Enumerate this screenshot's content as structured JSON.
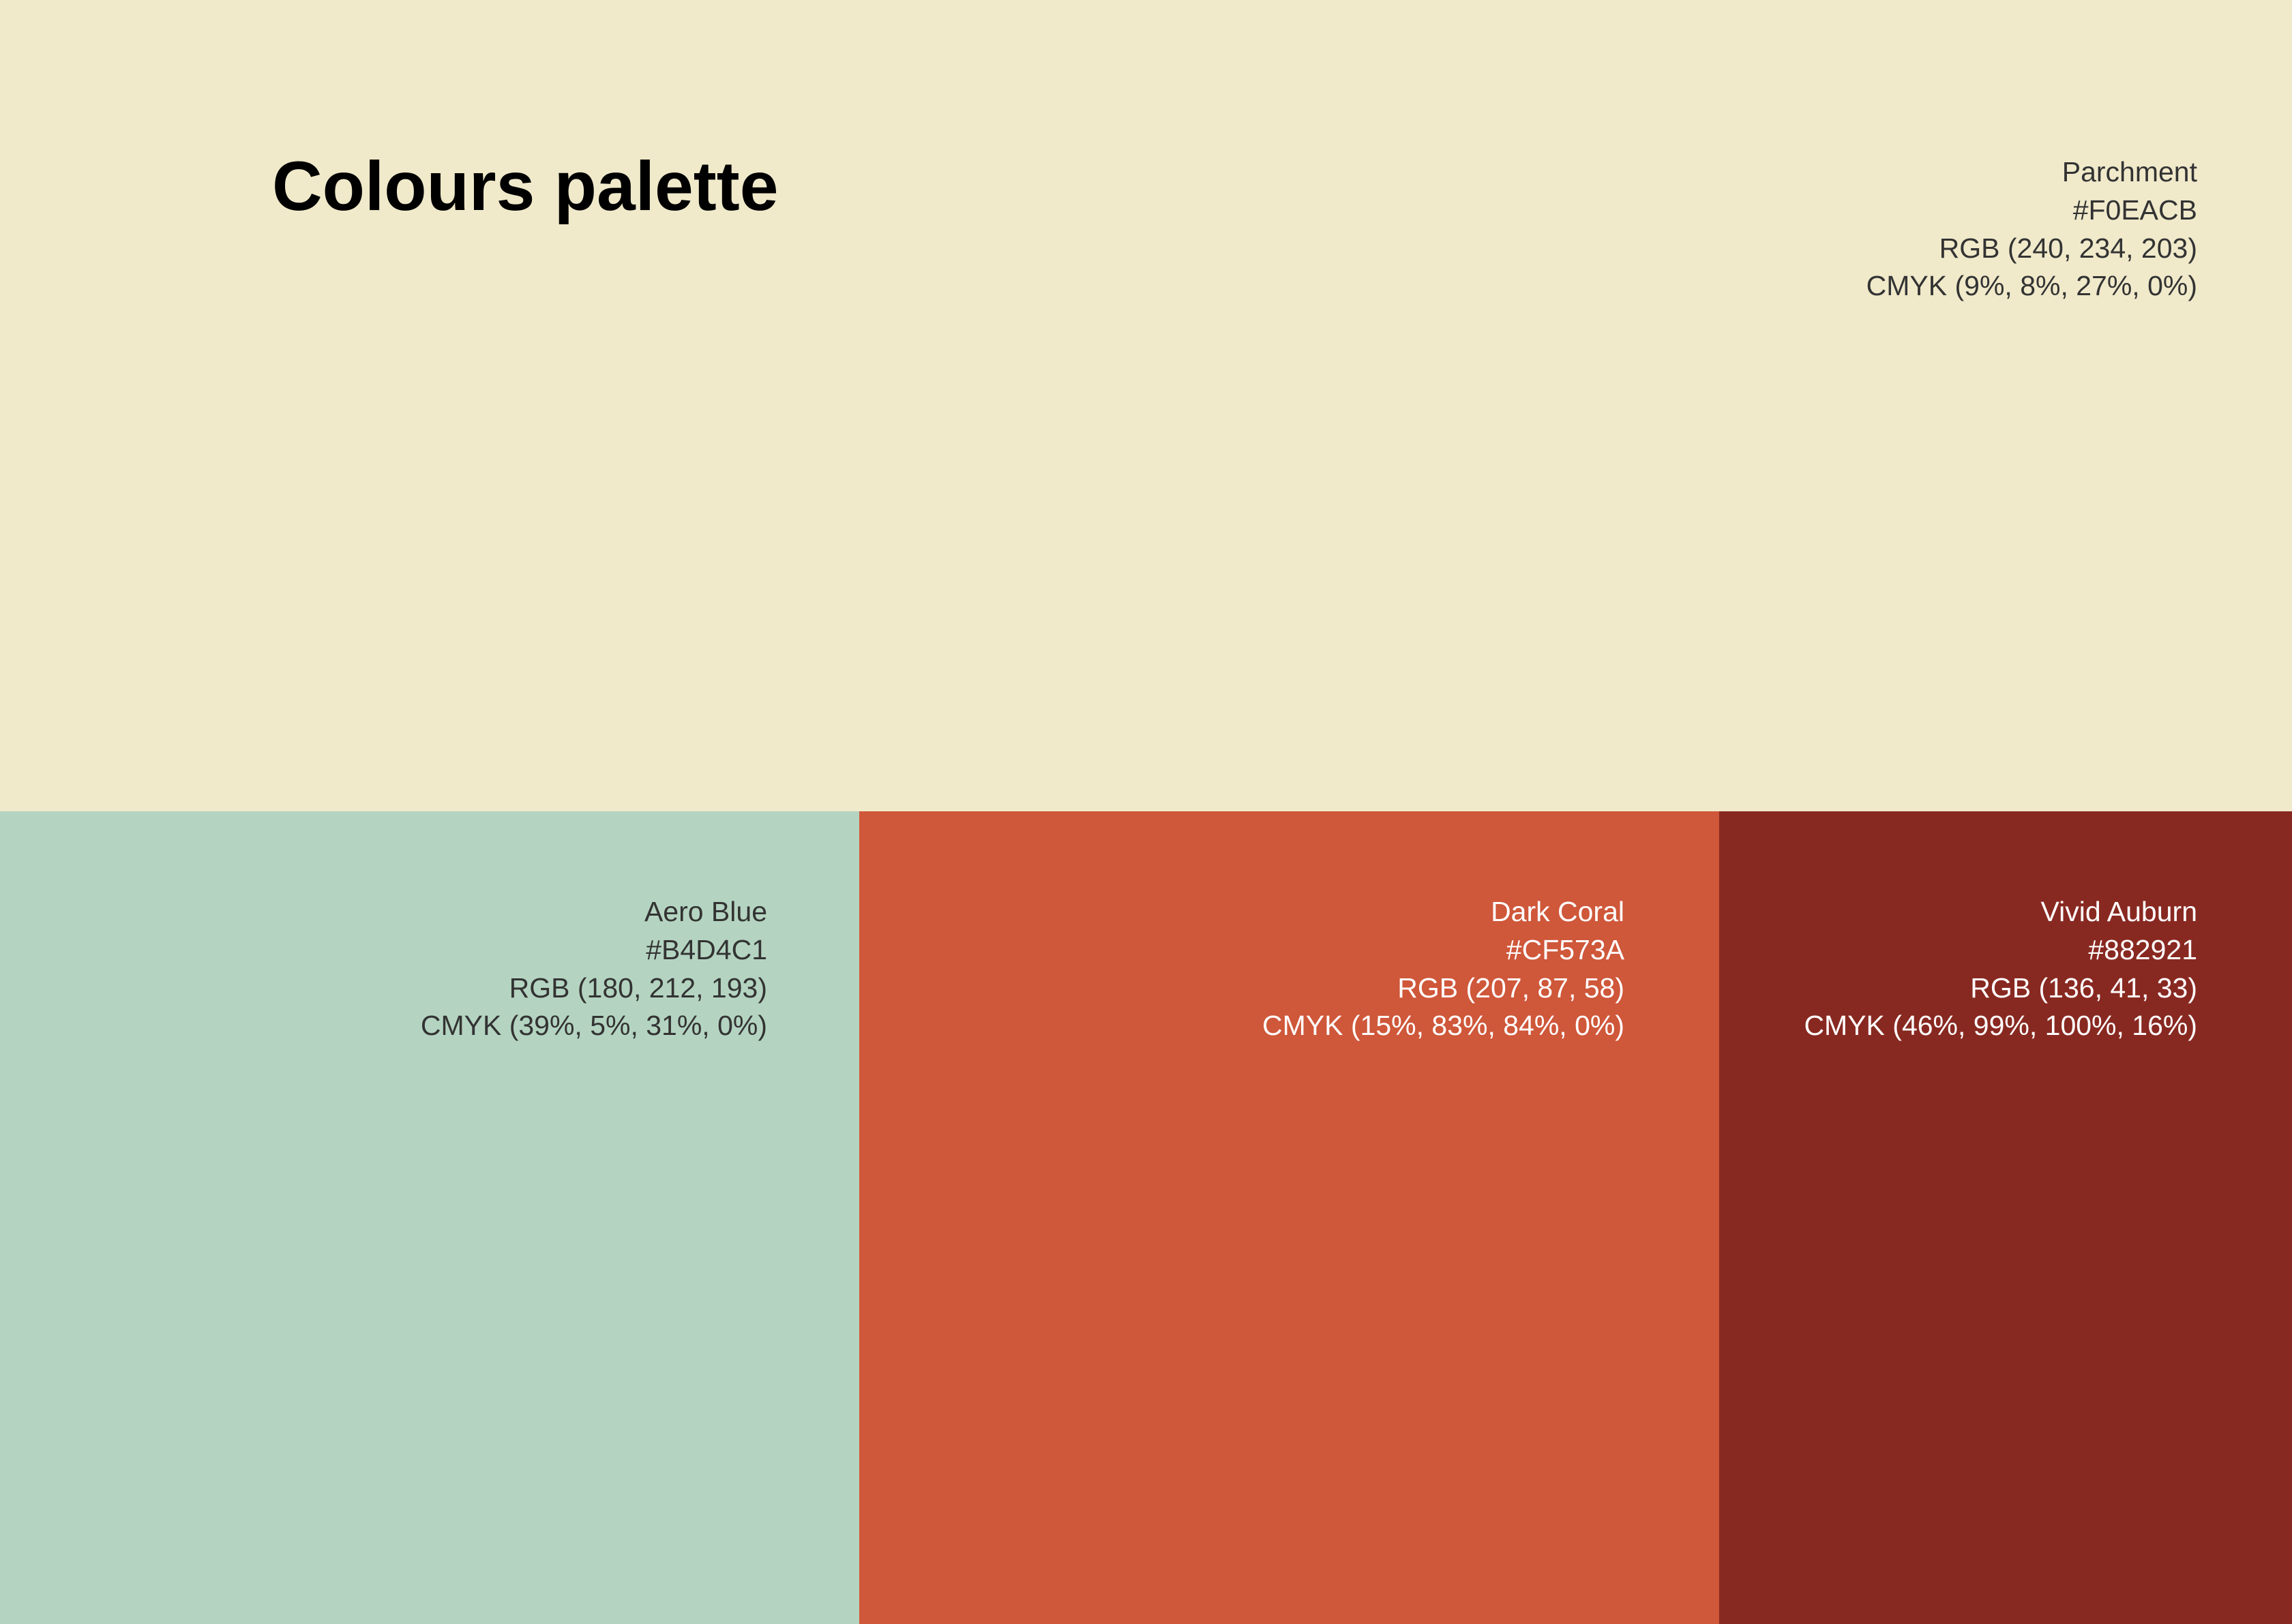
{
  "title": "Colours palette",
  "swatches": [
    {
      "name": "Parchment",
      "hex": "#F0EACB",
      "rgb": "RGB (240, 234, 203)",
      "cmyk": "CMYK (9%, 8%, 27%, 0%)"
    },
    {
      "name": "Aero Blue",
      "hex": "#B4D4C1",
      "rgb": "RGB (180, 212, 193)",
      "cmyk": "CMYK (39%, 5%, 31%, 0%)"
    },
    {
      "name": "Dark Coral",
      "hex": "#CF573A",
      "rgb": "RGB (207, 87, 58)",
      "cmyk": "CMYK (15%, 83%, 84%, 0%)"
    },
    {
      "name": "Vivid Auburn",
      "hex": "#882921",
      "rgb": "RGB (136, 41, 33)",
      "cmyk": "CMYK (46%, 99%, 100%, 16%)"
    }
  ]
}
